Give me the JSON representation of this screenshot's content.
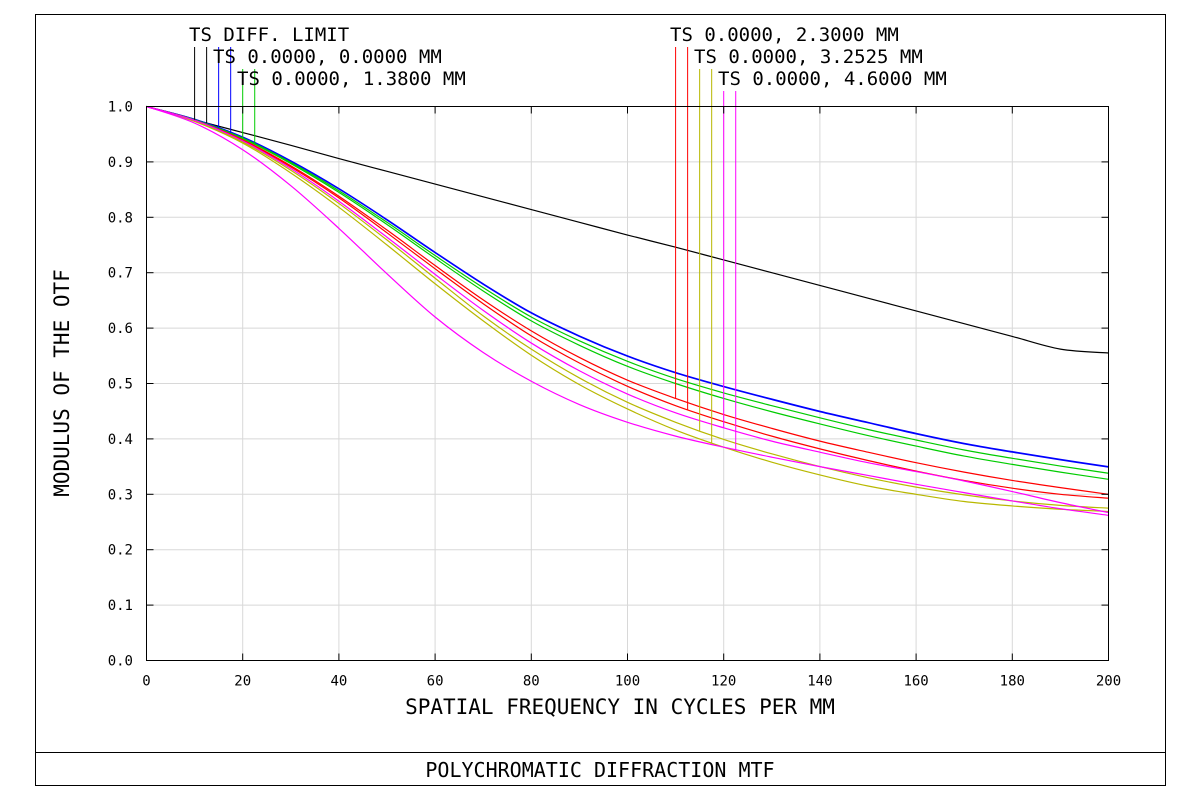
{
  "chart_data": {
    "type": "line",
    "title": "POLYCHROMATIC DIFFRACTION MTF",
    "xlabel": "SPATIAL FREQUENCY IN CYCLES PER MM",
    "ylabel": "MODULUS OF THE OTF",
    "xlim": [
      0,
      200
    ],
    "ylim": [
      0,
      1.0
    ],
    "grid": true,
    "x_ticks": [
      0,
      20,
      40,
      60,
      80,
      100,
      120,
      140,
      160,
      180,
      200
    ],
    "x_tick_labels": [
      "0",
      "20",
      "40",
      "60",
      "80",
      "100",
      "120",
      "140",
      "160",
      "180",
      "200"
    ],
    "y_ticks": [
      0,
      0.1,
      0.2,
      0.3,
      0.4,
      0.5,
      0.6,
      0.7,
      0.8,
      0.9,
      1.0
    ],
    "y_tick_labels": [
      "0.0",
      "0.1",
      "0.2",
      "0.3",
      "0.4",
      "0.5",
      "0.6",
      "0.7",
      "0.8",
      "0.9",
      "1.0"
    ],
    "legend": [
      {
        "text": "TS DIFF. LIMIT",
        "markers": [
          {
            "x": 10,
            "color": "#000000"
          },
          {
            "x": 12.5,
            "color": "#000000"
          }
        ]
      },
      {
        "text": "TS 0.0000, 0.0000 MM",
        "markers": [
          {
            "x": 15,
            "color": "#0000ff"
          },
          {
            "x": 17.5,
            "color": "#0000ff"
          }
        ]
      },
      {
        "text": "TS 0.0000, 1.3800 MM",
        "markers": [
          {
            "x": 20,
            "color": "#00cc00"
          },
          {
            "x": 22.5,
            "color": "#00cc00"
          }
        ]
      },
      {
        "text": "TS 0.0000, 2.3000 MM",
        "markers": [
          {
            "x": 110,
            "color": "#ff0000"
          },
          {
            "x": 112.5,
            "color": "#ff0000"
          }
        ]
      },
      {
        "text": "TS 0.0000, 3.2525 MM",
        "markers": [
          {
            "x": 115,
            "color": "#b8b800"
          },
          {
            "x": 117.5,
            "color": "#b8b800"
          }
        ]
      },
      {
        "text": "TS 0.0000, 4.6000 MM",
        "markers": [
          {
            "x": 120,
            "color": "#ff00ff"
          },
          {
            "x": 122.5,
            "color": "#ff00ff"
          }
        ]
      }
    ],
    "x": [
      0,
      10,
      20,
      30,
      40,
      50,
      60,
      70,
      80,
      90,
      100,
      110,
      120,
      130,
      140,
      150,
      160,
      170,
      180,
      190,
      200
    ],
    "series": [
      {
        "color": "#000000",
        "values": [
          1.0,
          0.976,
          0.953,
          0.93,
          0.906,
          0.883,
          0.86,
          0.837,
          0.814,
          0.791,
          0.768,
          0.746,
          0.723,
          0.7,
          0.677,
          0.654,
          0.631,
          0.608,
          0.585,
          0.562,
          0.555
        ]
      },
      {
        "color": "#0000ff",
        "values": [
          1.0,
          0.977,
          0.945,
          0.902,
          0.852,
          0.796,
          0.737,
          0.68,
          0.628,
          0.586,
          0.55,
          0.52,
          0.495,
          0.472,
          0.45,
          0.43,
          0.41,
          0.392,
          0.377,
          0.363,
          0.35
        ]
      },
      {
        "color": "#0000ff",
        "values": [
          1.0,
          0.977,
          0.944,
          0.901,
          0.851,
          0.795,
          0.736,
          0.679,
          0.627,
          0.585,
          0.549,
          0.519,
          0.494,
          0.471,
          0.449,
          0.429,
          0.409,
          0.391,
          0.376,
          0.362,
          0.349
        ]
      },
      {
        "color": "#00cc00",
        "values": [
          1.0,
          0.976,
          0.943,
          0.899,
          0.848,
          0.791,
          0.731,
          0.673,
          0.62,
          0.577,
          0.54,
          0.509,
          0.483,
          0.46,
          0.438,
          0.417,
          0.398,
          0.38,
          0.365,
          0.351,
          0.338
        ]
      },
      {
        "color": "#00cc00",
        "values": [
          1.0,
          0.976,
          0.942,
          0.897,
          0.845,
          0.787,
          0.726,
          0.667,
          0.613,
          0.569,
          0.531,
          0.5,
          0.473,
          0.449,
          0.427,
          0.406,
          0.387,
          0.369,
          0.354,
          0.34,
          0.327
        ]
      },
      {
        "color": "#ff0000",
        "values": [
          1.0,
          0.975,
          0.94,
          0.893,
          0.838,
          0.777,
          0.713,
          0.651,
          0.595,
          0.547,
          0.506,
          0.473,
          0.444,
          0.419,
          0.396,
          0.376,
          0.357,
          0.34,
          0.325,
          0.312,
          0.3
        ]
      },
      {
        "color": "#ff0000",
        "values": [
          1.0,
          0.975,
          0.939,
          0.891,
          0.835,
          0.772,
          0.707,
          0.644,
          0.586,
          0.537,
          0.495,
          0.46,
          0.431,
          0.405,
          0.382,
          0.361,
          0.342,
          0.325,
          0.311,
          0.3,
          0.293
        ]
      },
      {
        "color": "#b8b800",
        "values": [
          1.0,
          0.974,
          0.936,
          0.885,
          0.825,
          0.759,
          0.69,
          0.622,
          0.562,
          0.51,
          0.466,
          0.43,
          0.399,
          0.373,
          0.35,
          0.33,
          0.313,
          0.299,
          0.288,
          0.28,
          0.275
        ]
      },
      {
        "color": "#b8b800",
        "values": [
          1.0,
          0.973,
          0.934,
          0.88,
          0.818,
          0.75,
          0.68,
          0.613,
          0.551,
          0.498,
          0.454,
          0.416,
          0.385,
          0.358,
          0.335,
          0.315,
          0.3,
          0.287,
          0.279,
          0.273,
          0.269
        ]
      },
      {
        "color": "#ff00ff",
        "values": [
          1.0,
          0.975,
          0.938,
          0.888,
          0.829,
          0.764,
          0.697,
          0.632,
          0.573,
          0.523,
          0.481,
          0.447,
          0.42,
          0.396,
          0.376,
          0.357,
          0.341,
          0.324,
          0.305,
          0.285,
          0.267
        ]
      },
      {
        "color": "#ff00ff",
        "values": [
          1.0,
          0.97,
          0.922,
          0.857,
          0.78,
          0.698,
          0.62,
          0.556,
          0.504,
          0.462,
          0.43,
          0.405,
          0.385,
          0.367,
          0.35,
          0.334,
          0.318,
          0.303,
          0.288,
          0.274,
          0.262
        ]
      }
    ]
  }
}
